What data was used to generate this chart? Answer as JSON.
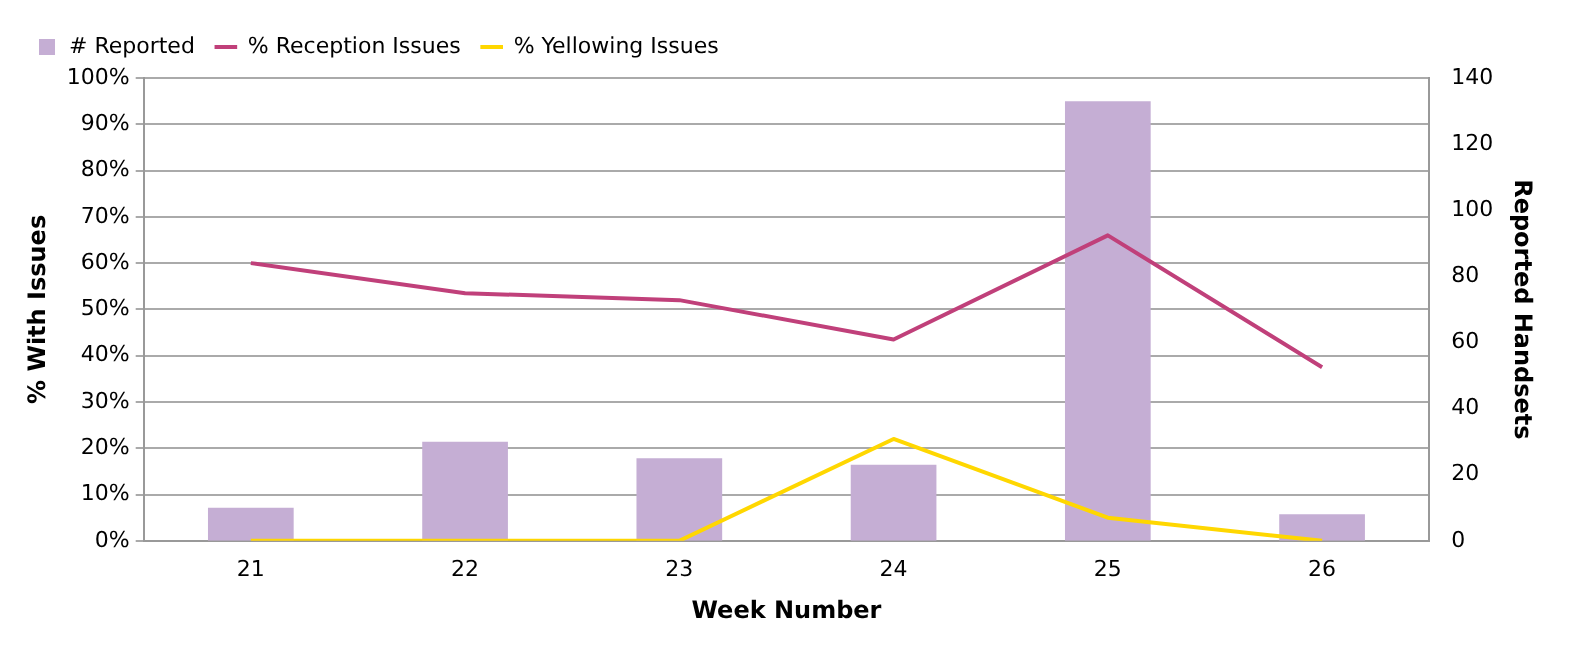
{
  "chart_data": {
    "type": "bar",
    "xlabel": "Week Number",
    "ylabel": "% With Issues",
    "y2label": "Reported Handsets",
    "categories": [
      "21",
      "22",
      "23",
      "24",
      "25",
      "26"
    ],
    "series": [
      {
        "name": "# Reported",
        "axis": "y2",
        "color": "#c5aed4",
        "values": [
          10,
          30,
          25,
          23,
          133,
          8
        ]
      },
      {
        "name": "% Reception Issues",
        "type": "line",
        "color": "#c0407a",
        "values": [
          60,
          53.5,
          52,
          43.5,
          66,
          37.5
        ]
      },
      {
        "name": "% Yellowing Issues",
        "type": "line",
        "color": "#ffd700",
        "values": [
          0,
          0,
          0,
          22,
          5,
          0
        ]
      }
    ],
    "ylim": [
      0,
      100
    ],
    "yticks": [
      {
        "value": 0,
        "label": "0%"
      },
      {
        "value": 10,
        "label": "10%"
      },
      {
        "value": 20,
        "label": "20%"
      },
      {
        "value": 30,
        "label": "30%"
      },
      {
        "value": 40,
        "label": "40%"
      },
      {
        "value": 50,
        "label": "50%"
      },
      {
        "value": 60,
        "label": "60%"
      },
      {
        "value": 70,
        "label": "70%"
      },
      {
        "value": 80,
        "label": "80%"
      },
      {
        "value": 90,
        "label": "90%"
      },
      {
        "value": 100,
        "label": "100%"
      }
    ],
    "y2lim": [
      0,
      140
    ],
    "y2ticks": [
      0,
      20,
      40,
      60,
      80,
      100,
      120,
      140
    ],
    "grid": "y",
    "legend": "top left",
    "marker": "none"
  }
}
